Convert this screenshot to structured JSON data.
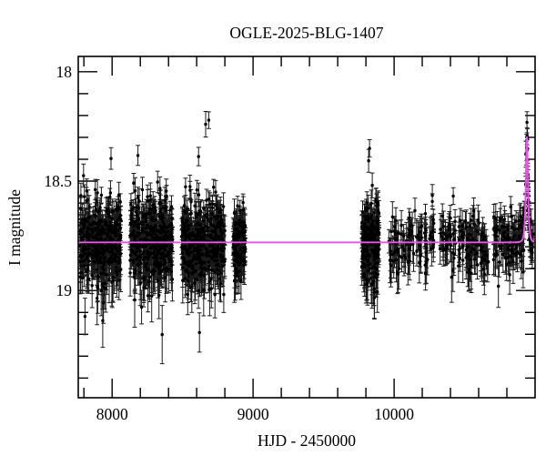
{
  "figure": {
    "title": "OGLE-2025-BLG-1407",
    "background_color": "#ffffff"
  },
  "chart_data": {
    "type": "scatter",
    "title": "OGLE-2025-BLG-1407",
    "xlabel": "HJD - 2450000",
    "ylabel": "I magnitude",
    "xlim": [
      7760,
      11000
    ],
    "ylim": [
      17.93,
      19.49
    ],
    "y_axis_inverted": true,
    "grid": false,
    "legend": null,
    "x_major_ticks": [
      8000,
      9000,
      10000
    ],
    "x_tick_labels": [
      "8000",
      "9000",
      "10000"
    ],
    "x_minor_step": 200,
    "y_major_ticks": [
      18,
      18.5,
      19
    ],
    "y_tick_labels": [
      "18",
      "18.5",
      "19"
    ],
    "y_minor_step": 0.1,
    "baseline_mag": 18.78,
    "model_curve": {
      "kind": "paczynski_microlensing",
      "t0": 10942,
      "tE": 10,
      "u0": 0.78,
      "baseline_mag": 18.78,
      "peak_mag": 18.3,
      "color": "#ee4fee"
    },
    "colors": {
      "data": "#000000",
      "error_bar": "#1a1a1a",
      "model": "#ee4fee",
      "frame": "#000000",
      "background": "#ffffff"
    },
    "seasons": [
      {
        "t_start": 7772,
        "t_end": 8062,
        "n": 400,
        "mag_mean": 18.78,
        "mag_sigma": 0.092
      },
      {
        "t_start": 8128,
        "t_end": 8430,
        "n": 400,
        "mag_mean": 18.78,
        "mag_sigma": 0.092
      },
      {
        "t_start": 8492,
        "t_end": 8800,
        "n": 400,
        "mag_mean": 18.78,
        "mag_sigma": 0.092
      },
      {
        "t_start": 8858,
        "t_end": 8946,
        "n": 130,
        "mag_mean": 18.78,
        "mag_sigma": 0.072
      },
      {
        "t_start": 9770,
        "t_end": 9895,
        "n": 230,
        "mag_mean": 18.78,
        "mag_sigma": 0.092
      },
      {
        "t_start": 9962,
        "t_end": 10282,
        "n": 100,
        "mag_mean": 18.78,
        "mag_sigma": 0.063
      },
      {
        "t_start": 10324,
        "t_end": 10670,
        "n": 130,
        "mag_mean": 18.78,
        "mag_sigma": 0.058
      },
      {
        "t_start": 10704,
        "t_end": 10924,
        "n": 110,
        "mag_mean": 18.78,
        "mag_sigma": 0.058
      },
      {
        "t_start": 10926,
        "t_end": 10961,
        "n": 30,
        "mag_mean": 18.78,
        "mag_sigma": 0.035
      },
      {
        "t_start": 10962,
        "t_end": 10990,
        "n": 12,
        "mag_mean": 18.78,
        "mag_sigma": 0.06
      }
    ],
    "outlier_fraction": 0.08,
    "outlier_sigma_scale": 2.2,
    "seed": 1407
  }
}
